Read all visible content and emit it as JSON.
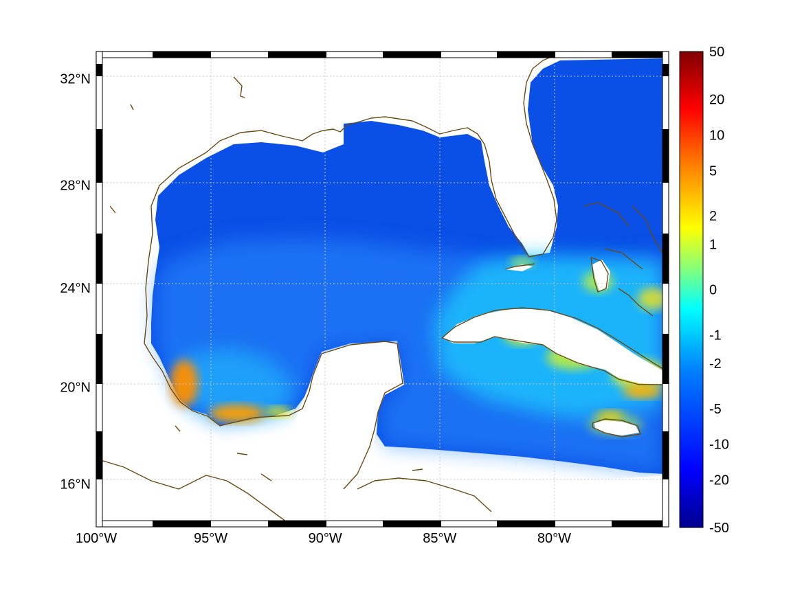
{
  "map": {
    "projection": "Mercator",
    "lon_range": [
      -100,
      -75
    ],
    "lat_range": [
      14.2,
      33.0
    ],
    "lon_ticks": [
      -100,
      -95,
      -90,
      -85,
      -80
    ],
    "lon_tick_labels": [
      "100°W",
      "95°W",
      "90°W",
      "85°W",
      "80°W"
    ],
    "lat_ticks": [
      16,
      20,
      24,
      28,
      32
    ],
    "lat_tick_labels": [
      "16°N",
      "20°N",
      "24°N",
      "28°N",
      "32°N"
    ],
    "grid": true,
    "coastline_color": "#6b4a12",
    "frame": "alternating black/white border"
  },
  "colorbar": {
    "position": "right",
    "scale": "symmetric log-like",
    "tick_labels": [
      "50",
      "20",
      "10",
      "5",
      "2",
      "1",
      "0",
      "-1",
      "-2",
      "-5",
      "-10",
      "-20",
      "-50"
    ],
    "colormap": "jet",
    "colors": [
      "#00008f",
      "#0000ff",
      "#0080ff",
      "#00ffff",
      "#80ff80",
      "#ffff00",
      "#ff8000",
      "#ff0000",
      "#800000"
    ]
  },
  "field": {
    "dominant_color": "#0a4fe6",
    "warm_regions": [
      "Bay of Campeche",
      "Cuba / Bahamas",
      "Jamaica"
    ]
  }
}
